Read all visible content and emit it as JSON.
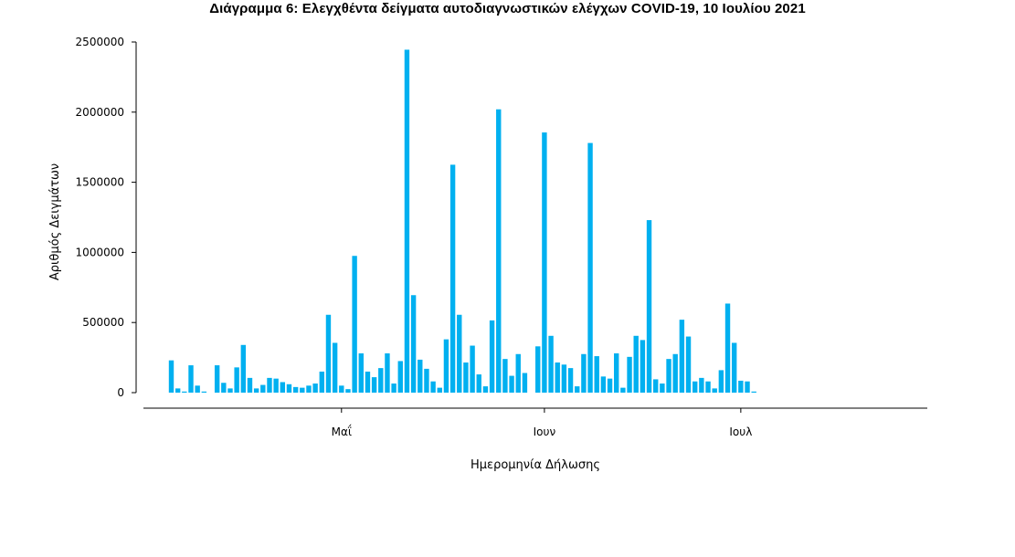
{
  "chart_data": {
    "type": "bar",
    "title": "Διάγραμμα 6: Ελεγχθέντα δείγματα αυτοδιαγνωστικών ελέγχων COVID-19, 10 Ιουλίου 2021",
    "xlabel": "Ημερομηνία Δήλωσης",
    "ylabel": "Αριθμός Δειγμάτων",
    "ylim": [
      0,
      2500000
    ],
    "yticks": [
      0,
      500000,
      1000000,
      1500000,
      2000000,
      2500000
    ],
    "ytick_labels": [
      "0",
      "500000",
      "1000000",
      "1500000",
      "2000000",
      "2500000"
    ],
    "xtick_labels": [
      "Μαΐ",
      "Ιουν",
      "Ιουλ"
    ],
    "x": [
      "2021-04-05",
      "2021-04-06",
      "2021-04-07",
      "2021-04-08",
      "2021-04-09",
      "2021-04-10",
      "2021-04-11",
      "2021-04-12",
      "2021-04-13",
      "2021-04-14",
      "2021-04-15",
      "2021-04-16",
      "2021-04-17",
      "2021-04-18",
      "2021-04-19",
      "2021-04-20",
      "2021-04-21",
      "2021-04-22",
      "2021-04-23",
      "2021-04-24",
      "2021-04-25",
      "2021-04-26",
      "2021-04-27",
      "2021-04-28",
      "2021-04-29",
      "2021-04-30",
      "2021-05-01",
      "2021-05-02",
      "2021-05-03",
      "2021-05-04",
      "2021-05-05",
      "2021-05-06",
      "2021-05-07",
      "2021-05-08",
      "2021-05-09",
      "2021-05-10",
      "2021-05-11",
      "2021-05-12",
      "2021-05-13",
      "2021-05-14",
      "2021-05-15",
      "2021-05-16",
      "2021-05-17",
      "2021-05-18",
      "2021-05-19",
      "2021-05-20",
      "2021-05-21",
      "2021-05-22",
      "2021-05-23",
      "2021-05-24",
      "2021-05-25",
      "2021-05-26",
      "2021-05-27",
      "2021-05-28",
      "2021-05-29",
      "2021-05-30",
      "2021-05-31",
      "2021-06-01",
      "2021-06-02",
      "2021-06-03",
      "2021-06-04",
      "2021-06-05",
      "2021-06-06",
      "2021-06-07",
      "2021-06-08",
      "2021-06-09",
      "2021-06-10",
      "2021-06-11",
      "2021-06-12",
      "2021-06-13",
      "2021-06-14",
      "2021-06-15",
      "2021-06-16",
      "2021-06-17",
      "2021-06-18",
      "2021-06-19",
      "2021-06-20",
      "2021-06-21",
      "2021-06-22",
      "2021-06-23",
      "2021-06-24",
      "2021-06-25",
      "2021-06-26",
      "2021-06-27",
      "2021-06-28",
      "2021-06-29",
      "2021-06-30",
      "2021-07-01",
      "2021-07-02",
      "2021-07-03",
      "2021-07-04",
      "2021-07-05",
      "2021-07-06",
      "2021-07-07",
      "2021-07-08",
      "2021-07-09",
      "2021-07-10"
    ],
    "values": [
      230000,
      30000,
      5000,
      195000,
      50000,
      2000,
      0,
      195000,
      70000,
      30000,
      180000,
      340000,
      105000,
      30000,
      55000,
      105000,
      100000,
      75000,
      60000,
      40000,
      35000,
      50000,
      65000,
      150000,
      555000,
      355000,
      50000,
      25000,
      975000,
      280000,
      150000,
      110000,
      175000,
      280000,
      65000,
      225000,
      2445000,
      695000,
      235000,
      170000,
      80000,
      35000,
      380000,
      1625000,
      555000,
      215000,
      335000,
      130000,
      45000,
      515000,
      2020000,
      240000,
      120000,
      275000,
      140000,
      0,
      330000,
      1855000,
      405000,
      215000,
      200000,
      175000,
      45000,
      275000,
      1780000,
      260000,
      115000,
      100000,
      280000,
      35000,
      255000,
      405000,
      375000,
      1230000,
      95000,
      65000,
      240000,
      275000,
      520000,
      400000,
      80000,
      105000,
      80000,
      30000,
      160000,
      635000,
      355000,
      85000,
      80000,
      5000,
      0,
      0,
      0,
      0,
      0,
      0,
      0
    ],
    "color": "#00b0f0",
    "grid": false,
    "legend": "none"
  }
}
